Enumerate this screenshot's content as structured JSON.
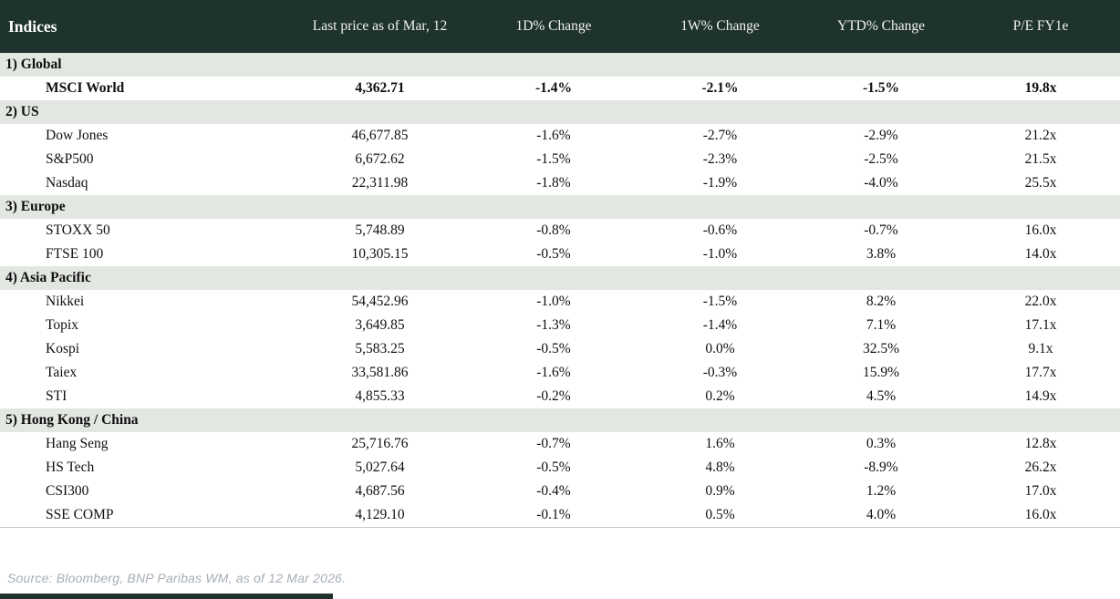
{
  "colors": {
    "header_bg": "#1e332d",
    "section_bg": "#e3e7e2",
    "negative": "#b80d0d",
    "positive": "#089c3d",
    "accent_bar": "#1e332d"
  },
  "table": {
    "columns": [
      "Indices",
      "Last price as of Mar, 12",
      "1D% Change",
      "1W% Change",
      "YTD% Change",
      "P/E FY1e"
    ],
    "sections": [
      {
        "label": "1) Global",
        "rows": [
          {
            "name": "MSCI World",
            "price": "4,362.71",
            "emphasis": true,
            "changes": [
              {
                "v": "-1.4%",
                "dir": "neg"
              },
              {
                "v": "-2.1%",
                "dir": "neg"
              },
              {
                "v": "-1.5%",
                "dir": "neg"
              }
            ],
            "pe": "19.8x"
          }
        ]
      },
      {
        "label": "2) US",
        "rows": [
          {
            "name": "Dow Jones",
            "price": "46,677.85",
            "emphasis": false,
            "changes": [
              {
                "v": "-1.6%",
                "dir": "neg"
              },
              {
                "v": "-2.7%",
                "dir": "neg"
              },
              {
                "v": "-2.9%",
                "dir": "neg"
              }
            ],
            "pe": "21.2x"
          },
          {
            "name": "S&P500",
            "price": "6,672.62",
            "emphasis": false,
            "changes": [
              {
                "v": "-1.5%",
                "dir": "neg"
              },
              {
                "v": "-2.3%",
                "dir": "neg"
              },
              {
                "v": "-2.5%",
                "dir": "neg"
              }
            ],
            "pe": "21.5x"
          },
          {
            "name": "Nasdaq",
            "price": "22,311.98",
            "emphasis": false,
            "changes": [
              {
                "v": "-1.8%",
                "dir": "neg"
              },
              {
                "v": "-1.9%",
                "dir": "neg"
              },
              {
                "v": "-4.0%",
                "dir": "neg"
              }
            ],
            "pe": "25.5x"
          }
        ]
      },
      {
        "label": "3) Europe",
        "rows": [
          {
            "name": "STOXX 50",
            "price": "5,748.89",
            "emphasis": false,
            "changes": [
              {
                "v": "-0.8%",
                "dir": "neg"
              },
              {
                "v": "-0.6%",
                "dir": "neg"
              },
              {
                "v": "-0.7%",
                "dir": "neg"
              }
            ],
            "pe": "16.0x"
          },
          {
            "name": "FTSE 100",
            "price": "10,305.15",
            "emphasis": false,
            "changes": [
              {
                "v": "-0.5%",
                "dir": "neg"
              },
              {
                "v": "-1.0%",
                "dir": "neg"
              },
              {
                "v": "3.8%",
                "dir": "pos"
              }
            ],
            "pe": "14.0x"
          }
        ]
      },
      {
        "label": "4) Asia Pacific",
        "rows": [
          {
            "name": "Nikkei",
            "price": "54,452.96",
            "emphasis": false,
            "changes": [
              {
                "v": "-1.0%",
                "dir": "neg"
              },
              {
                "v": "-1.5%",
                "dir": "neg"
              },
              {
                "v": "8.2%",
                "dir": "pos"
              }
            ],
            "pe": "22.0x"
          },
          {
            "name": "Topix",
            "price": "3,649.85",
            "emphasis": false,
            "changes": [
              {
                "v": "-1.3%",
                "dir": "neg"
              },
              {
                "v": "-1.4%",
                "dir": "neg"
              },
              {
                "v": "7.1%",
                "dir": "pos"
              }
            ],
            "pe": "17.1x"
          },
          {
            "name": "Kospi",
            "price": "5,583.25",
            "emphasis": false,
            "changes": [
              {
                "v": "-0.5%",
                "dir": "neg"
              },
              {
                "v": "0.0%",
                "dir": "neg"
              },
              {
                "v": "32.5%",
                "dir": "pos"
              }
            ],
            "pe": "9.1x"
          },
          {
            "name": "Taiex",
            "price": "33,581.86",
            "emphasis": false,
            "changes": [
              {
                "v": "-1.6%",
                "dir": "neg"
              },
              {
                "v": "-0.3%",
                "dir": "neg"
              },
              {
                "v": "15.9%",
                "dir": "pos"
              }
            ],
            "pe": "17.7x"
          },
          {
            "name": "STI",
            "price": "4,855.33",
            "emphasis": false,
            "changes": [
              {
                "v": "-0.2%",
                "dir": "neg"
              },
              {
                "v": "0.2%",
                "dir": "pos"
              },
              {
                "v": "4.5%",
                "dir": "pos"
              }
            ],
            "pe": "14.9x"
          }
        ]
      },
      {
        "label": "5) Hong Kong / China",
        "rows": [
          {
            "name": "Hang Seng",
            "price": "25,716.76",
            "emphasis": false,
            "changes": [
              {
                "v": "-0.7%",
                "dir": "neg"
              },
              {
                "v": "1.6%",
                "dir": "pos"
              },
              {
                "v": "0.3%",
                "dir": "pos"
              }
            ],
            "pe": "12.8x"
          },
          {
            "name": "HS Tech",
            "price": "5,027.64",
            "emphasis": false,
            "changes": [
              {
                "v": "-0.5%",
                "dir": "neg"
              },
              {
                "v": "4.8%",
                "dir": "pos"
              },
              {
                "v": "-8.9%",
                "dir": "neg"
              }
            ],
            "pe": "26.2x"
          },
          {
            "name": "CSI300",
            "price": "4,687.56",
            "emphasis": false,
            "changes": [
              {
                "v": "-0.4%",
                "dir": "neg"
              },
              {
                "v": "0.9%",
                "dir": "pos"
              },
              {
                "v": "1.2%",
                "dir": "pos"
              }
            ],
            "pe": "17.0x"
          },
          {
            "name": "SSE COMP",
            "price": "4,129.10",
            "emphasis": false,
            "changes": [
              {
                "v": "-0.1%",
                "dir": "neg"
              },
              {
                "v": "0.5%",
                "dir": "pos"
              },
              {
                "v": "4.0%",
                "dir": "pos"
              }
            ],
            "pe": "16.0x"
          }
        ]
      }
    ]
  },
  "footer": {
    "source": "Source: Bloomberg, BNP Paribas WM, as of 12 Mar 2026."
  }
}
